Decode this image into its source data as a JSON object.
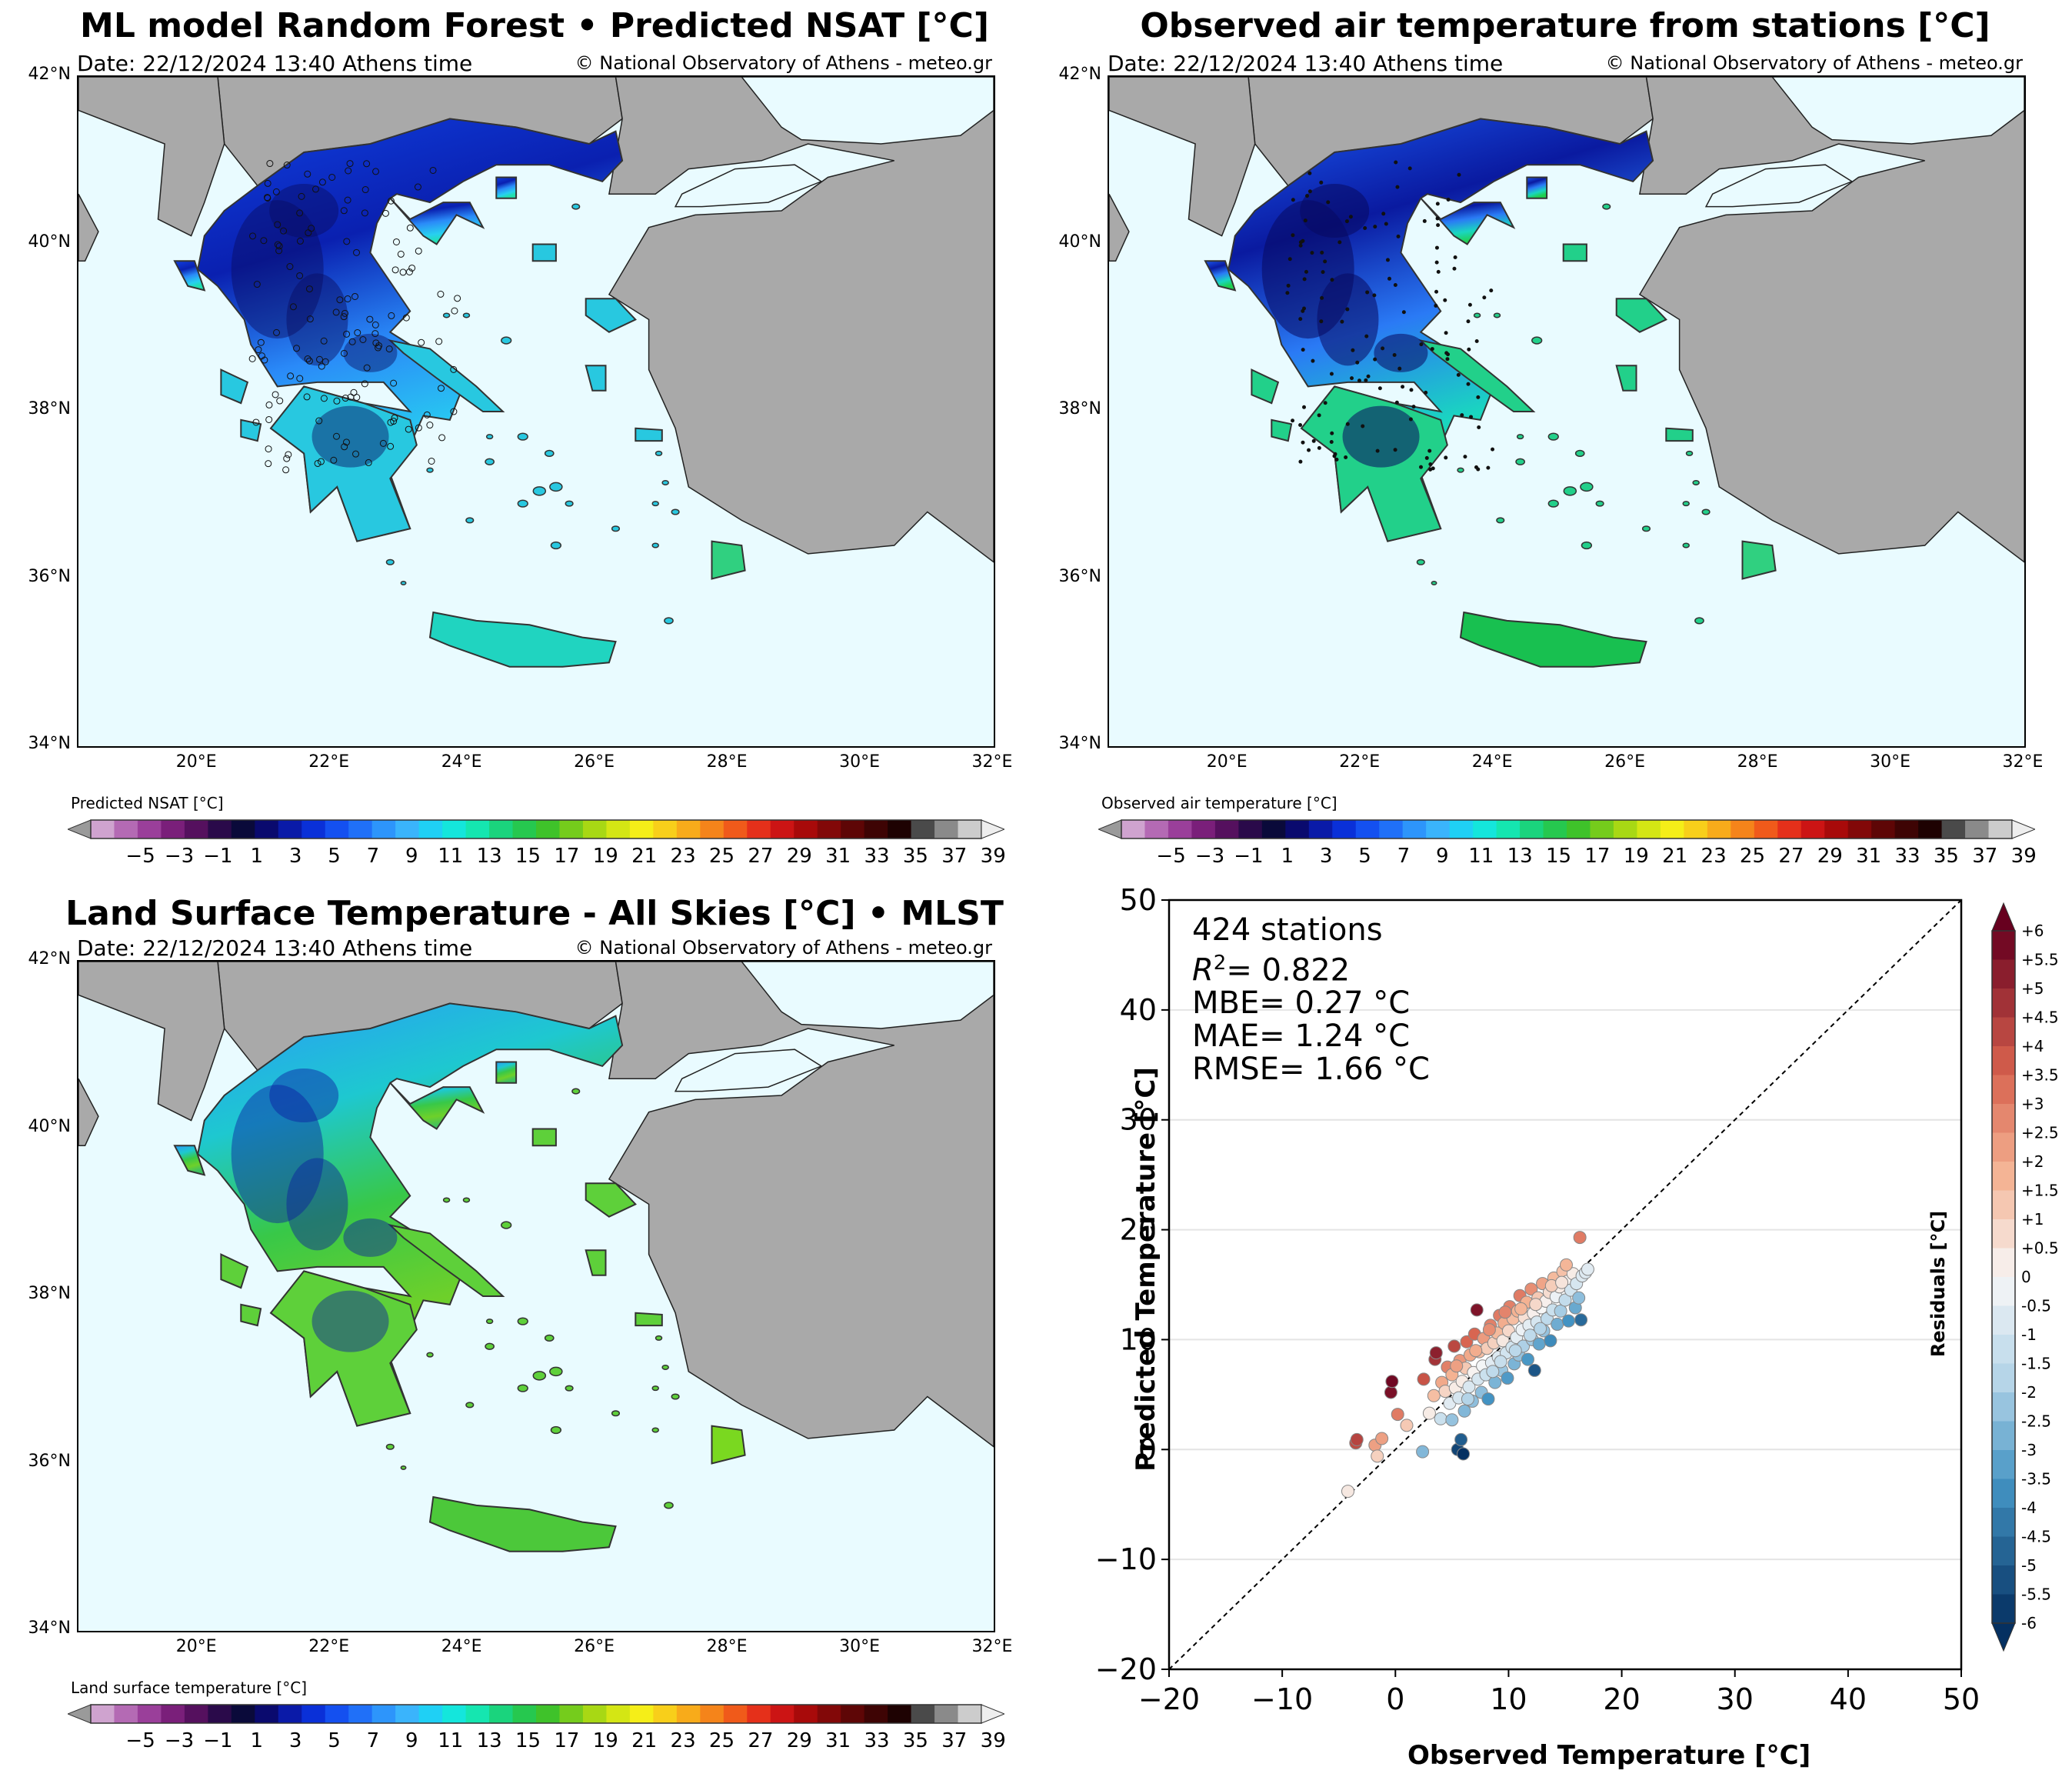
{
  "panels": [
    {
      "title": "ML model Random Forest • Predicted NSAT [°C]",
      "date": "Date: 22/12/2024 13:40 Athens time",
      "copyright": "© National Observatory of Athens - meteo.gr",
      "colorbar_label": "Predicted NSAT [°C]",
      "style": "predicted"
    },
    {
      "title": "Observed air temperature from stations [°C]",
      "date": "Date: 22/12/2024 13:40 Athens time",
      "copyright": "© National Observatory of Athens - meteo.gr",
      "colorbar_label": "Observed air temperature [°C]",
      "style": "observed"
    },
    {
      "title": "Land Surface Temperature - All Skies [°C] • MLST",
      "date": "Date: 22/12/2024 13:40 Athens time",
      "copyright": "© National Observatory of Athens - meteo.gr",
      "colorbar_label": "Land surface temperature [°C]",
      "style": "lst"
    }
  ],
  "map_axes": {
    "lat_labels": [
      "42°N",
      "40°N",
      "38°N",
      "36°N",
      "34°N"
    ],
    "lat_values": [
      42,
      40,
      38,
      36,
      34
    ],
    "lon_labels": [
      "20°E",
      "22°E",
      "24°E",
      "26°E",
      "28°E",
      "30°E",
      "32°E"
    ],
    "lon_values": [
      20,
      22,
      24,
      26,
      28,
      30,
      32
    ],
    "lon_range": [
      18.2,
      32
    ],
    "lat_range": [
      34,
      42
    ]
  },
  "temperature_colorbar": {
    "ticks": [
      "−5",
      "−3",
      "−1",
      "1",
      "3",
      "5",
      "7",
      "9",
      "11",
      "13",
      "15",
      "17",
      "19",
      "21",
      "23",
      "25",
      "27",
      "29",
      "31",
      "33",
      "35",
      "37",
      "39"
    ],
    "colors": [
      "#cfa3cf",
      "#b46ab4",
      "#9a3f9a",
      "#7a1f7a",
      "#55105e",
      "#2a0a4a",
      "#0a0a3a",
      "#0a0a6e",
      "#0a1aa8",
      "#0a30d8",
      "#1450f0",
      "#2070f8",
      "#2d95fb",
      "#3ab4fc",
      "#1fd0f5",
      "#14e6dc",
      "#15e6b0",
      "#1ad47d",
      "#26c84f",
      "#3fc22a",
      "#75cc1c",
      "#a8d814",
      "#d4e614",
      "#f5ee18",
      "#f8cf1a",
      "#f8ab1a",
      "#f5841a",
      "#f05a1a",
      "#e5301a",
      "#cc1414",
      "#a80a0a",
      "#820808",
      "#5e0606",
      "#3e0404",
      "#1e0202",
      "#4a4a4a",
      "#8a8a8a",
      "#cccccc"
    ]
  },
  "chart_data": {
    "type": "scatter",
    "annotation": {
      "stations": "424 stations",
      "r2_label": "R",
      "r2_sup": "2",
      "r2_value": "= 0.822",
      "mbe": "MBE= 0.27 °C",
      "mae": "MAE= 1.24 °C",
      "rmse": "RMSE= 1.66 °C"
    },
    "xlabel": "Observed  Temperature [°C]",
    "ylabel": "Predicted  Temperature [°C]",
    "xlim": [
      -20,
      50
    ],
    "ylim": [
      -20,
      50
    ],
    "xticks": [
      -20,
      -10,
      0,
      10,
      20,
      30,
      40,
      50
    ],
    "yticks": [
      -20,
      -10,
      0,
      10,
      20,
      30,
      40,
      50
    ],
    "xtick_labels": [
      "−20",
      "−10",
      "0",
      "10",
      "20",
      "30",
      "40",
      "50"
    ],
    "ytick_labels": [
      "−20",
      "−10",
      "0",
      "10",
      "20",
      "30",
      "40",
      "50"
    ],
    "reference_line": "1:1",
    "colorbar": {
      "label": "Residuals [°C]",
      "range": [
        -6,
        6
      ],
      "ticks": [
        "+6",
        "+5.5",
        "+5",
        "+4.5",
        "+4",
        "+3.5",
        "+3",
        "+2.5",
        "+2",
        "+1.5",
        "+1",
        "+0.5",
        "0",
        "-0.5",
        "-1",
        "-1.5",
        "-2",
        "-2.5",
        "-3",
        "-3.5",
        "-4",
        "-4.5",
        "-5",
        "-5.5",
        "-6"
      ],
      "tick_values": [
        6,
        5.5,
        5,
        4.5,
        4,
        3.5,
        3,
        2.5,
        2,
        1.5,
        1,
        0.5,
        0,
        -0.5,
        -1,
        -1.5,
        -2,
        -2.5,
        -3,
        -3.5,
        -4,
        -4.5,
        -5,
        -5.5,
        -6
      ]
    },
    "points": [
      {
        "x": -4.2,
        "y": -3.8,
        "r": 0.4
      },
      {
        "x": -3.5,
        "y": 0.6,
        "r": 4.1
      },
      {
        "x": -3.4,
        "y": 0.9,
        "r": 4.3
      },
      {
        "x": -1.8,
        "y": 0.4,
        "r": 2.2
      },
      {
        "x": -1.2,
        "y": 1.0,
        "r": 2.2
      },
      {
        "x": -1.6,
        "y": -0.6,
        "r": 1.0
      },
      {
        "x": -0.4,
        "y": 5.2,
        "r": 5.6
      },
      {
        "x": -0.3,
        "y": 6.2,
        "r": 5.8
      },
      {
        "x": 0.2,
        "y": 3.2,
        "r": 3.0
      },
      {
        "x": 1.0,
        "y": 2.2,
        "r": 1.2
      },
      {
        "x": 2.4,
        "y": -0.2,
        "r": -2.6
      },
      {
        "x": 2.5,
        "y": 6.4,
        "r": 3.9
      },
      {
        "x": 3.0,
        "y": 3.3,
        "r": 0.3
      },
      {
        "x": 3.4,
        "y": 4.9,
        "r": 1.5
      },
      {
        "x": 3.5,
        "y": 8.2,
        "r": 4.7
      },
      {
        "x": 3.6,
        "y": 8.8,
        "r": 5.2
      },
      {
        "x": 4.0,
        "y": 2.8,
        "r": -1.2
      },
      {
        "x": 4.1,
        "y": 6.1,
        "r": 2.0
      },
      {
        "x": 4.4,
        "y": 5.3,
        "r": 0.9
      },
      {
        "x": 4.6,
        "y": 7.5,
        "r": 2.9
      },
      {
        "x": 4.8,
        "y": 4.2,
        "r": -0.6
      },
      {
        "x": 5.0,
        "y": 2.7,
        "r": -2.3
      },
      {
        "x": 5.0,
        "y": 6.8,
        "r": 1.8
      },
      {
        "x": 5.2,
        "y": 9.4,
        "r": 4.2
      },
      {
        "x": 5.3,
        "y": 5.6,
        "r": 0.3
      },
      {
        "x": 5.5,
        "y": 0.0,
        "r": -5.5
      },
      {
        "x": 5.6,
        "y": 4.7,
        "r": -0.9
      },
      {
        "x": 5.7,
        "y": 8.1,
        "r": 2.4
      },
      {
        "x": 5.8,
        "y": 0.9,
        "r": -4.9
      },
      {
        "x": 5.9,
        "y": 6.2,
        "r": 0.3
      },
      {
        "x": 6.0,
        "y": -0.4,
        "r": -6.0
      },
      {
        "x": 6.1,
        "y": 3.5,
        "r": -2.6
      },
      {
        "x": 6.2,
        "y": 7.4,
        "r": 1.2
      },
      {
        "x": 6.3,
        "y": 9.8,
        "r": 3.5
      },
      {
        "x": 6.5,
        "y": 5.7,
        "r": -0.8
      },
      {
        "x": 6.6,
        "y": 8.6,
        "r": 2.0
      },
      {
        "x": 6.8,
        "y": 4.4,
        "r": -2.4
      },
      {
        "x": 6.9,
        "y": 7.0,
        "r": 0.1
      },
      {
        "x": 7.0,
        "y": 10.5,
        "r": 3.5
      },
      {
        "x": 7.2,
        "y": 12.7,
        "r": 5.5
      },
      {
        "x": 7.3,
        "y": 6.4,
        "r": -0.9
      },
      {
        "x": 7.4,
        "y": 8.9,
        "r": 1.5
      },
      {
        "x": 7.6,
        "y": 5.2,
        "r": -2.4
      },
      {
        "x": 7.7,
        "y": 7.6,
        "r": -0.1
      },
      {
        "x": 7.8,
        "y": 10.1,
        "r": 2.3
      },
      {
        "x": 8.0,
        "y": 6.8,
        "r": -1.2
      },
      {
        "x": 8.1,
        "y": 9.2,
        "r": 1.1
      },
      {
        "x": 8.2,
        "y": 4.6,
        "r": -3.6
      },
      {
        "x": 8.4,
        "y": 11.3,
        "r": 2.9
      },
      {
        "x": 8.5,
        "y": 7.9,
        "r": -0.6
      },
      {
        "x": 8.7,
        "y": 9.7,
        "r": 1.0
      },
      {
        "x": 8.8,
        "y": 6.1,
        "r": -2.7
      },
      {
        "x": 9.0,
        "y": 10.6,
        "r": 1.6
      },
      {
        "x": 9.1,
        "y": 8.4,
        "r": -0.7
      },
      {
        "x": 9.2,
        "y": 12.2,
        "r": 3.0
      },
      {
        "x": 9.4,
        "y": 7.2,
        "r": -2.2
      },
      {
        "x": 9.5,
        "y": 9.9,
        "r": 0.4
      },
      {
        "x": 9.6,
        "y": 11.5,
        "r": 1.9
      },
      {
        "x": 9.8,
        "y": 8.8,
        "r": -1.0
      },
      {
        "x": 9.9,
        "y": 6.5,
        "r": -3.4
      },
      {
        "x": 10.0,
        "y": 10.8,
        "r": 0.8
      },
      {
        "x": 10.1,
        "y": 13.0,
        "r": 2.9
      },
      {
        "x": 10.3,
        "y": 9.3,
        "r": -1.0
      },
      {
        "x": 10.4,
        "y": 11.9,
        "r": 1.5
      },
      {
        "x": 10.5,
        "y": 7.8,
        "r": -2.7
      },
      {
        "x": 10.7,
        "y": 10.2,
        "r": -0.5
      },
      {
        "x": 10.8,
        "y": 12.6,
        "r": 1.8
      },
      {
        "x": 10.9,
        "y": 8.6,
        "r": -2.3
      },
      {
        "x": 11.0,
        "y": 14.0,
        "r": 3.0
      },
      {
        "x": 11.2,
        "y": 10.9,
        "r": -0.3
      },
      {
        "x": 11.3,
        "y": 9.4,
        "r": -1.9
      },
      {
        "x": 11.4,
        "y": 12.0,
        "r": 0.6
      },
      {
        "x": 11.6,
        "y": 13.4,
        "r": 1.8
      },
      {
        "x": 11.7,
        "y": 8.2,
        "r": -3.5
      },
      {
        "x": 11.8,
        "y": 11.3,
        "r": -0.5
      },
      {
        "x": 12.0,
        "y": 14.6,
        "r": 2.6
      },
      {
        "x": 12.1,
        "y": 10.0,
        "r": -2.1
      },
      {
        "x": 12.2,
        "y": 12.4,
        "r": 0.2
      },
      {
        "x": 12.3,
        "y": 7.2,
        "r": -5.1
      },
      {
        "x": 12.5,
        "y": 11.6,
        "r": -0.9
      },
      {
        "x": 12.6,
        "y": 13.8,
        "r": 1.2
      },
      {
        "x": 12.7,
        "y": 9.6,
        "r": -3.1
      },
      {
        "x": 12.9,
        "y": 12.9,
        "r": 0.0
      },
      {
        "x": 13.0,
        "y": 15.1,
        "r": 2.1
      },
      {
        "x": 13.1,
        "y": 10.8,
        "r": -2.3
      },
      {
        "x": 13.3,
        "y": 13.5,
        "r": 0.2
      },
      {
        "x": 13.4,
        "y": 11.9,
        "r": -1.5
      },
      {
        "x": 13.6,
        "y": 14.3,
        "r": 0.7
      },
      {
        "x": 13.7,
        "y": 9.9,
        "r": -3.8
      },
      {
        "x": 13.9,
        "y": 12.7,
        "r": -1.2
      },
      {
        "x": 14.0,
        "y": 15.6,
        "r": 1.6
      },
      {
        "x": 14.2,
        "y": 13.9,
        "r": -0.3
      },
      {
        "x": 14.3,
        "y": 11.4,
        "r": -2.9
      },
      {
        "x": 14.5,
        "y": 14.8,
        "r": 0.3
      },
      {
        "x": 14.6,
        "y": 12.6,
        "r": -2.0
      },
      {
        "x": 14.8,
        "y": 16.2,
        "r": 1.4
      },
      {
        "x": 15.0,
        "y": 13.6,
        "r": -1.4
      },
      {
        "x": 15.2,
        "y": 15.3,
        "r": 0.1
      },
      {
        "x": 15.3,
        "y": 11.7,
        "r": -3.6
      },
      {
        "x": 15.5,
        "y": 14.5,
        "r": -1.0
      },
      {
        "x": 15.7,
        "y": 16.0,
        "r": 0.3
      },
      {
        "x": 15.9,
        "y": 12.9,
        "r": -3.0
      },
      {
        "x": 16.0,
        "y": 15.1,
        "r": -0.9
      },
      {
        "x": 16.2,
        "y": 13.8,
        "r": -2.4
      },
      {
        "x": 16.3,
        "y": 19.3,
        "r": 3.0
      },
      {
        "x": 16.4,
        "y": 11.8,
        "r": -4.6
      },
      {
        "x": 16.5,
        "y": 15.8,
        "r": -0.7
      },
      {
        "x": 16.8,
        "y": 16.1,
        "r": -0.7
      },
      {
        "x": 17.0,
        "y": 16.4,
        "r": -0.6
      },
      {
        "x": 8.3,
        "y": 10.9,
        "r": 2.6
      },
      {
        "x": 9.7,
        "y": 12.5,
        "r": 2.8
      },
      {
        "x": 11.1,
        "y": 12.8,
        "r": 1.7
      },
      {
        "x": 12.4,
        "y": 13.2,
        "r": 0.8
      },
      {
        "x": 7.1,
        "y": 9.0,
        "r": 1.9
      },
      {
        "x": 6.4,
        "y": 4.6,
        "r": -1.8
      },
      {
        "x": 10.6,
        "y": 9.0,
        "r": -1.6
      },
      {
        "x": 13.8,
        "y": 14.9,
        "r": 1.1
      },
      {
        "x": 15.1,
        "y": 16.8,
        "r": 1.7
      },
      {
        "x": 8.6,
        "y": 7.1,
        "r": -1.5
      },
      {
        "x": 11.9,
        "y": 10.4,
        "r": -1.5
      },
      {
        "x": 14.7,
        "y": 15.2,
        "r": 0.5
      },
      {
        "x": 5.4,
        "y": 7.6,
        "r": 2.2
      },
      {
        "x": 9.3,
        "y": 8.0,
        "r": -1.3
      },
      {
        "x": 12.8,
        "y": 11.0,
        "r": -1.8
      }
    ]
  }
}
